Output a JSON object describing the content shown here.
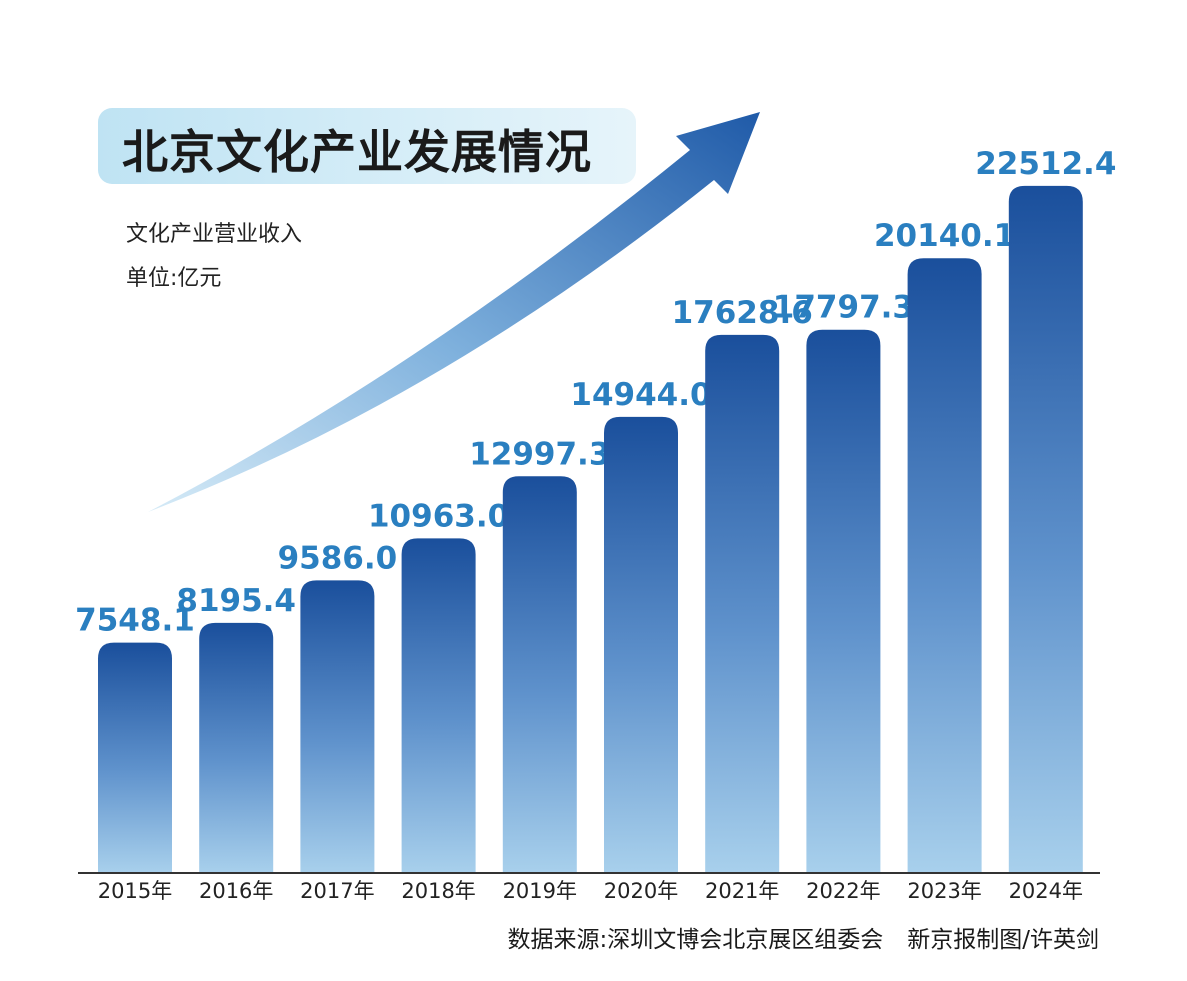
{
  "title": "北京文化产业发展情况",
  "subtitle": "文化产业营业收入",
  "unit": "单位:亿元",
  "source": "数据来源:深圳文博会北京展区组委会",
  "credit": "新京报制图/许英剑",
  "colors": {
    "bar_top": "#1a4f9c",
    "bar_bottom": "#a8d0ec",
    "label": "#2a7fc0",
    "title_bg": "#c9e8f5"
  },
  "chart_data": {
    "type": "bar",
    "categories": [
      "2015年",
      "2016年",
      "2017年",
      "2018年",
      "2019年",
      "2020年",
      "2021年",
      "2022年",
      "2023年",
      "2024年"
    ],
    "values": [
      7548.1,
      8195.4,
      9586.0,
      10963.0,
      12997.3,
      14944.0,
      17628.6,
      17797.3,
      20140.1,
      22512.4
    ],
    "value_labels": [
      "7548.1",
      "8195.4",
      "9586.0",
      "10963.0",
      "12997.3",
      "14944.0",
      "17628.6",
      "17797.3",
      "20140.1",
      "22512.4"
    ],
    "ylim": [
      0,
      28600
    ],
    "grid": false,
    "legend": "none",
    "annotations": [
      "upward trend arrow"
    ]
  }
}
